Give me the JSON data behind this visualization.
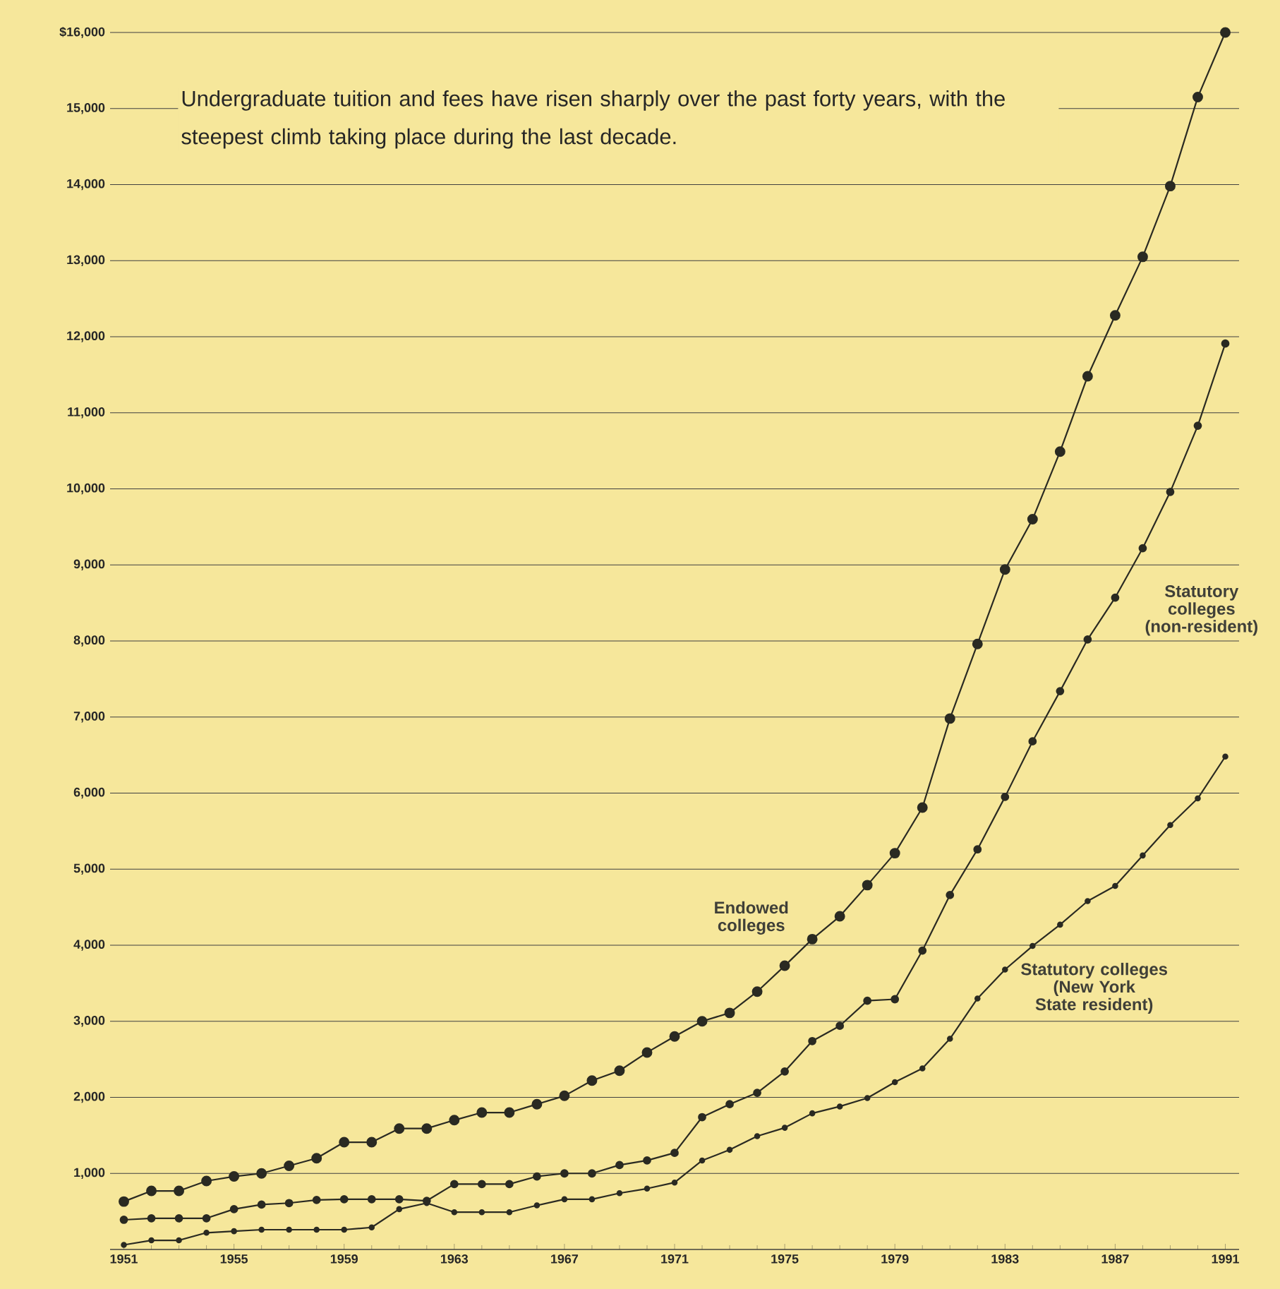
{
  "chart_data": {
    "type": "line",
    "subtitle": "Undergraduate tuition and fees have risen sharply over the past forty years, with the steepest climb taking place during the last decade.",
    "x": [
      1951,
      1952,
      1953,
      1954,
      1955,
      1956,
      1957,
      1958,
      1959,
      1960,
      1961,
      1962,
      1963,
      1964,
      1965,
      1966,
      1967,
      1968,
      1969,
      1970,
      1971,
      1972,
      1973,
      1974,
      1975,
      1976,
      1977,
      1978,
      1979,
      1980,
      1981,
      1982,
      1983,
      1984,
      1985,
      1986,
      1987,
      1988,
      1989,
      1990,
      1991
    ],
    "series": [
      {
        "name": "Endowed colleges",
        "color": "#2a2a22",
        "values": [
          630,
          770,
          770,
          900,
          960,
          1000,
          1100,
          1200,
          1410,
          1410,
          1590,
          1590,
          1700,
          1800,
          1800,
          1910,
          2020,
          2220,
          2350,
          2590,
          2800,
          3000,
          3110,
          3390,
          3730,
          4080,
          4380,
          4790,
          5210,
          5810,
          6980,
          7960,
          8940,
          9600,
          10490,
          11480,
          12280,
          13050,
          13980,
          15150,
          16000
        ]
      },
      {
        "name": "Statutory colleges (non-resident)",
        "color": "#2a2a22",
        "values": [
          390,
          410,
          410,
          410,
          530,
          590,
          610,
          650,
          660,
          660,
          660,
          640,
          860,
          860,
          860,
          960,
          1000,
          1000,
          1110,
          1170,
          1270,
          1740,
          1910,
          2060,
          2340,
          2740,
          2940,
          3270,
          3290,
          3930,
          4660,
          5260,
          5950,
          6680,
          7340,
          8020,
          8570,
          9220,
          9960,
          10830,
          11910
        ]
      },
      {
        "name": "Statutory colleges (New York State resident)",
        "color": "#2a2a22",
        "values": [
          60,
          120,
          120,
          220,
          240,
          260,
          260,
          260,
          260,
          290,
          530,
          610,
          490,
          490,
          490,
          580,
          660,
          660,
          740,
          800,
          880,
          1170,
          1310,
          1490,
          1600,
          1790,
          1880,
          1990,
          2200,
          2380,
          2770,
          3300,
          3680,
          3990,
          4270,
          4580,
          4780,
          5180,
          5580,
          5930,
          6480
        ]
      }
    ],
    "xlim": [
      1950.5,
      1991.5
    ],
    "xticks": [
      1951,
      1955,
      1959,
      1963,
      1967,
      1971,
      1975,
      1979,
      1983,
      1987,
      1991
    ],
    "ylim": [
      0,
      16000
    ],
    "yticks": [
      {
        "value": 0,
        "label": null
      },
      {
        "value": 1000,
        "label": "1,000"
      },
      {
        "value": 2000,
        "label": "2,000"
      },
      {
        "value": 3000,
        "label": "3,000"
      },
      {
        "value": 4000,
        "label": "4,000"
      },
      {
        "value": 5000,
        "label": "5,000"
      },
      {
        "value": 6000,
        "label": "6,000"
      },
      {
        "value": 7000,
        "label": "7,000"
      },
      {
        "value": 8000,
        "label": "8,000"
      },
      {
        "value": 9000,
        "label": "9,000"
      },
      {
        "value": 10000,
        "label": "10,000"
      },
      {
        "value": 11000,
        "label": "11,000"
      },
      {
        "value": 12000,
        "label": "12,000"
      },
      {
        "value": 13000,
        "label": "13,000"
      },
      {
        "value": 14000,
        "label": "14,000"
      },
      {
        "value": 15000,
        "label": "15,000"
      },
      {
        "value": 16000,
        "label": "$16,000"
      }
    ],
    "grid": "y",
    "marker": "circle",
    "line_style": "solid"
  }
}
